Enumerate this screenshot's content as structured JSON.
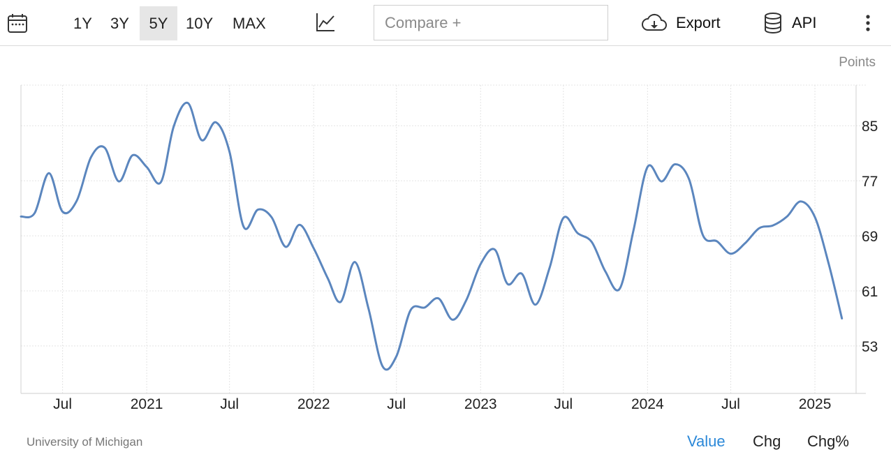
{
  "toolbar": {
    "ranges": [
      "1Y",
      "3Y",
      "5Y",
      "10Y",
      "MAX"
    ],
    "active_range": "5Y",
    "compare_placeholder": "Compare +",
    "export_label": "Export",
    "api_label": "API",
    "icons": {
      "calendar": "calendar-icon",
      "chart_type": "line-chart-icon",
      "export": "cloud-download-icon",
      "api": "database-icon",
      "more": "more-vertical-icon"
    }
  },
  "footer": {
    "source": "University of Michigan",
    "tabs": [
      "Value",
      "Chg",
      "Chg%"
    ],
    "active_tab": "Value"
  },
  "colors": {
    "line": "#5b86be",
    "active_tab": "#2b88d8",
    "grid": "#e4e4e4"
  },
  "chart_data": {
    "type": "line",
    "unit_label": "Points",
    "y_ticks": [
      53,
      61,
      69,
      77,
      85
    ],
    "ylim": [
      46.1,
      90.9
    ],
    "x_range": [
      "2020-04-01",
      "2025-04-01"
    ],
    "x_ticks": [
      {
        "date": "2020-07-01",
        "label": "Jul"
      },
      {
        "date": "2021-01-01",
        "label": "2021"
      },
      {
        "date": "2021-07-01",
        "label": "Jul"
      },
      {
        "date": "2022-01-01",
        "label": "2022"
      },
      {
        "date": "2022-07-01",
        "label": "Jul"
      },
      {
        "date": "2023-01-01",
        "label": "2023"
      },
      {
        "date": "2023-07-01",
        "label": "Jul"
      },
      {
        "date": "2024-01-01",
        "label": "2024"
      },
      {
        "date": "2024-07-01",
        "label": "Jul"
      },
      {
        "date": "2025-01-01",
        "label": "2025"
      }
    ],
    "grid": true,
    "legend": "none",
    "series": [
      {
        "dates": [
          "2020-04",
          "2020-05",
          "2020-06",
          "2020-07",
          "2020-08",
          "2020-09",
          "2020-10",
          "2020-11",
          "2020-12",
          "2021-01",
          "2021-02",
          "2021-03",
          "2021-04",
          "2021-05",
          "2021-06",
          "2021-07",
          "2021-08",
          "2021-09",
          "2021-10",
          "2021-11",
          "2021-12",
          "2022-01",
          "2022-02",
          "2022-03",
          "2022-04",
          "2022-05",
          "2022-06",
          "2022-07",
          "2022-08",
          "2022-09",
          "2022-10",
          "2022-11",
          "2022-12",
          "2023-01",
          "2023-02",
          "2023-03",
          "2023-04",
          "2023-05",
          "2023-06",
          "2023-07",
          "2023-08",
          "2023-09",
          "2023-10",
          "2023-11",
          "2023-12",
          "2024-01",
          "2024-02",
          "2024-03",
          "2024-04",
          "2024-05",
          "2024-06",
          "2024-07",
          "2024-08",
          "2024-09",
          "2024-10",
          "2024-11",
          "2024-12",
          "2025-01",
          "2025-02",
          "2025-03"
        ],
        "values": [
          71.8,
          72.3,
          78.1,
          72.5,
          74.1,
          80.4,
          81.8,
          76.9,
          80.7,
          79.0,
          76.8,
          84.9,
          88.3,
          82.9,
          85.5,
          81.2,
          70.3,
          72.8,
          71.7,
          67.4,
          70.6,
          67.2,
          62.8,
          59.4,
          65.2,
          58.4,
          50.0,
          51.5,
          58.2,
          58.6,
          59.9,
          56.8,
          59.7,
          64.9,
          67.0,
          62.0,
          63.5,
          59.0,
          64.4,
          71.6,
          69.4,
          68.1,
          63.8,
          61.3,
          69.7,
          79.0,
          76.9,
          79.4,
          77.2,
          69.1,
          68.2,
          66.4,
          67.9,
          70.1,
          70.5,
          71.8,
          74.0,
          71.7,
          64.7,
          57.0
        ]
      }
    ]
  }
}
